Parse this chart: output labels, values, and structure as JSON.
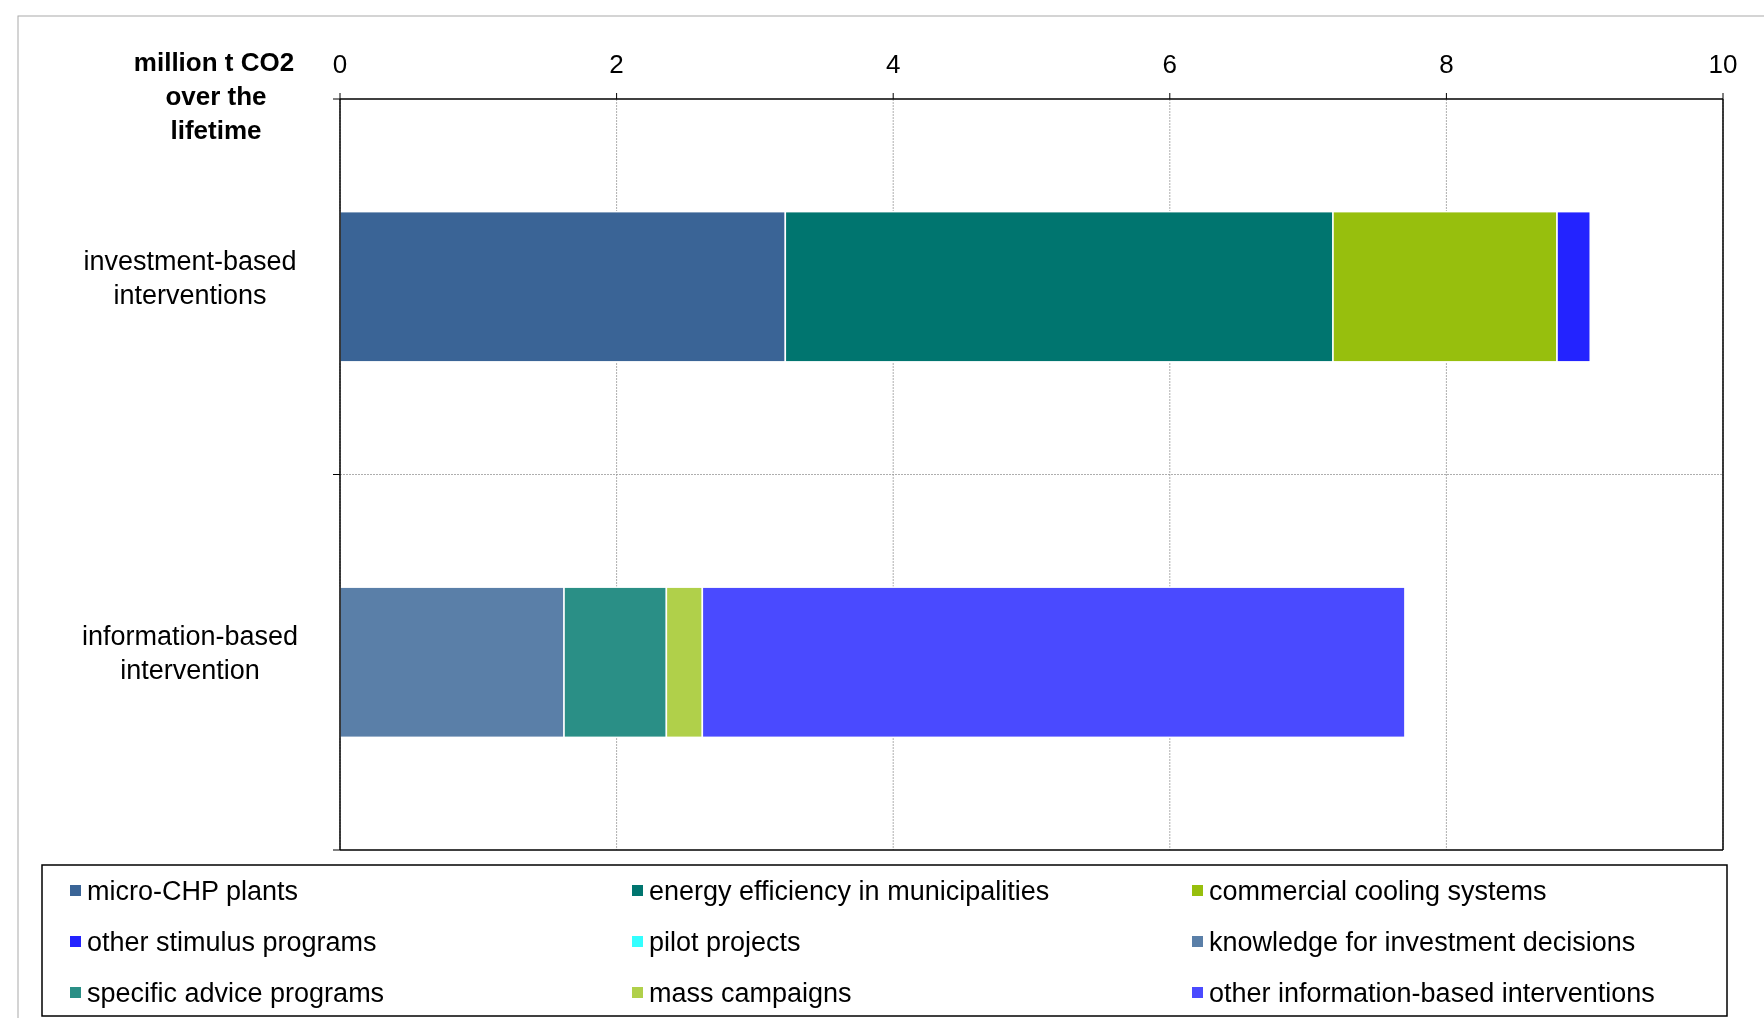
{
  "chart_data": {
    "type": "bar",
    "orientation": "horizontal",
    "stacked": true,
    "ylabel": "million t CO2 over the lifetime",
    "categories": [
      "investment-based interventions",
      "information-based intervention"
    ],
    "xlim": [
      0,
      10
    ],
    "xticks": [
      0,
      2,
      4,
      6,
      8,
      10
    ],
    "grid": true,
    "legend": "bottom",
    "series": [
      {
        "name": "micro-CHP plants",
        "color": "#3a6496",
        "values": [
          3.22,
          null
        ]
      },
      {
        "name": "energy efficiency in municipalities",
        "color": "#00756f",
        "values": [
          3.96,
          null
        ]
      },
      {
        "name": "commercial cooling systems",
        "color": "#97bf0d",
        "values": [
          1.62,
          null
        ]
      },
      {
        "name": "other stimulus programs",
        "color": "#2323ff",
        "values": [
          0.24,
          null
        ]
      },
      {
        "name": "pilot projects",
        "color": "#33ffff",
        "values": [
          0,
          null
        ]
      },
      {
        "name": "knowledge for investment decisions",
        "color": "#5a7fa8",
        "values": [
          null,
          1.62
        ]
      },
      {
        "name": "specific advice programs",
        "color": "#2a8f86",
        "values": [
          null,
          0.74
        ]
      },
      {
        "name": "mass campaigns",
        "color": "#b0d04a",
        "values": [
          null,
          0.26
        ]
      },
      {
        "name": "other information-based interventions",
        "color": "#4a4aff",
        "values": [
          null,
          5.08
        ]
      }
    ]
  }
}
